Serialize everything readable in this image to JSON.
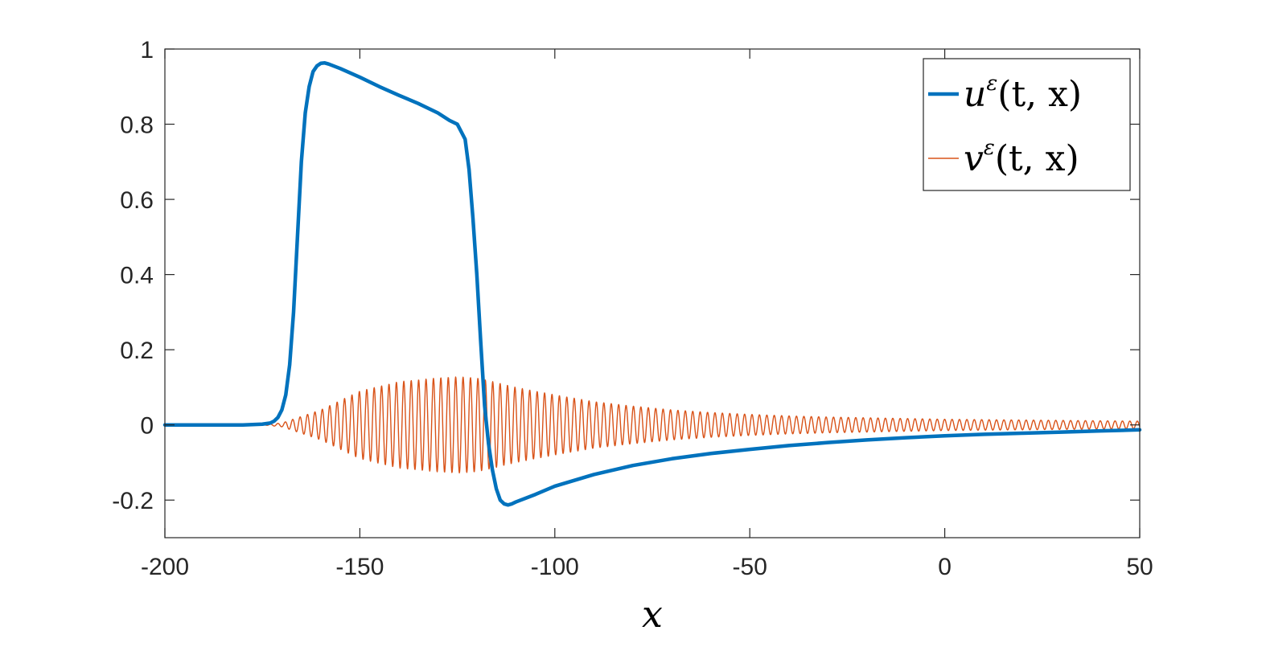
{
  "chart_data": {
    "type": "line",
    "title": "",
    "xlabel": "x",
    "ylabel": "",
    "xlim": [
      -200,
      50
    ],
    "ylim": [
      -0.3,
      1.0
    ],
    "xticks": [
      -200,
      -150,
      -100,
      -50,
      0,
      50
    ],
    "xtick_labels": [
      "-200",
      "-150",
      "-100",
      "-50",
      "0",
      "50"
    ],
    "yticks": [
      -0.2,
      0,
      0.2,
      0.4,
      0.6,
      0.8,
      1
    ],
    "ytick_labels": [
      "-0.2",
      "0",
      "0.2",
      "0.4",
      "0.6",
      "0.8",
      "1"
    ],
    "grid": false,
    "legend_position": "top-right",
    "series": [
      {
        "name": "u^ε(t, x)",
        "color": "#0072BD",
        "style": "thick",
        "x": [
          -200,
          -180,
          -175,
          -173,
          -172,
          -171,
          -170,
          -169,
          -168,
          -167,
          -166,
          -165,
          -164,
          -163,
          -162,
          -161,
          -160,
          -159,
          -158,
          -155,
          -150,
          -145,
          -140,
          -135,
          -130,
          -127,
          -125,
          -124,
          -123,
          -122.5,
          -122,
          -121,
          -120,
          -119,
          -118,
          -117,
          -116,
          -115,
          -114,
          -113,
          -112,
          -111,
          -110,
          -105,
          -100,
          -90,
          -80,
          -70,
          -60,
          -50,
          -40,
          -30,
          -20,
          -10,
          0,
          10,
          20,
          30,
          40,
          50
        ],
        "y": [
          0,
          0,
          0.002,
          0.005,
          0.01,
          0.02,
          0.04,
          0.08,
          0.16,
          0.3,
          0.5,
          0.7,
          0.83,
          0.9,
          0.94,
          0.955,
          0.962,
          0.963,
          0.96,
          0.948,
          0.925,
          0.9,
          0.877,
          0.855,
          0.83,
          0.81,
          0.8,
          0.78,
          0.76,
          0.72,
          0.68,
          0.55,
          0.4,
          0.22,
          0.05,
          -0.05,
          -0.12,
          -0.17,
          -0.2,
          -0.21,
          -0.213,
          -0.21,
          -0.205,
          -0.185,
          -0.163,
          -0.132,
          -0.108,
          -0.09,
          -0.076,
          -0.065,
          -0.055,
          -0.047,
          -0.04,
          -0.034,
          -0.029,
          -0.025,
          -0.022,
          -0.019,
          -0.016,
          -0.013
        ]
      },
      {
        "name": "v^ε(t, x)",
        "color": "#D95319",
        "style": "thin-oscillatory",
        "x": [
          -200,
          -175,
          -170,
          -160,
          -150,
          -140,
          -130,
          -125,
          -120,
          -118,
          -115,
          -110,
          -100,
          -90,
          -80,
          -70,
          -60,
          -50,
          -40,
          -30,
          -20,
          -10,
          0,
          10,
          20,
          30,
          40,
          50
        ],
        "envelope": [
          0,
          0,
          0.005,
          0.04,
          0.09,
          0.115,
          0.125,
          0.128,
          0.125,
          0.12,
          0.113,
          0.1,
          0.08,
          0.062,
          0.05,
          0.04,
          0.033,
          0.028,
          0.024,
          0.021,
          0.019,
          0.017,
          0.015,
          0.014,
          0.013,
          0.012,
          0.011,
          0.01
        ],
        "oscillation_period": 1.9
      }
    ],
    "legend": {
      "entries": [
        {
          "main": "u",
          "sup": "ε",
          "tail": "(t, x)"
        },
        {
          "main": "v",
          "sup": "ε",
          "tail": "(t, x)"
        }
      ]
    }
  }
}
